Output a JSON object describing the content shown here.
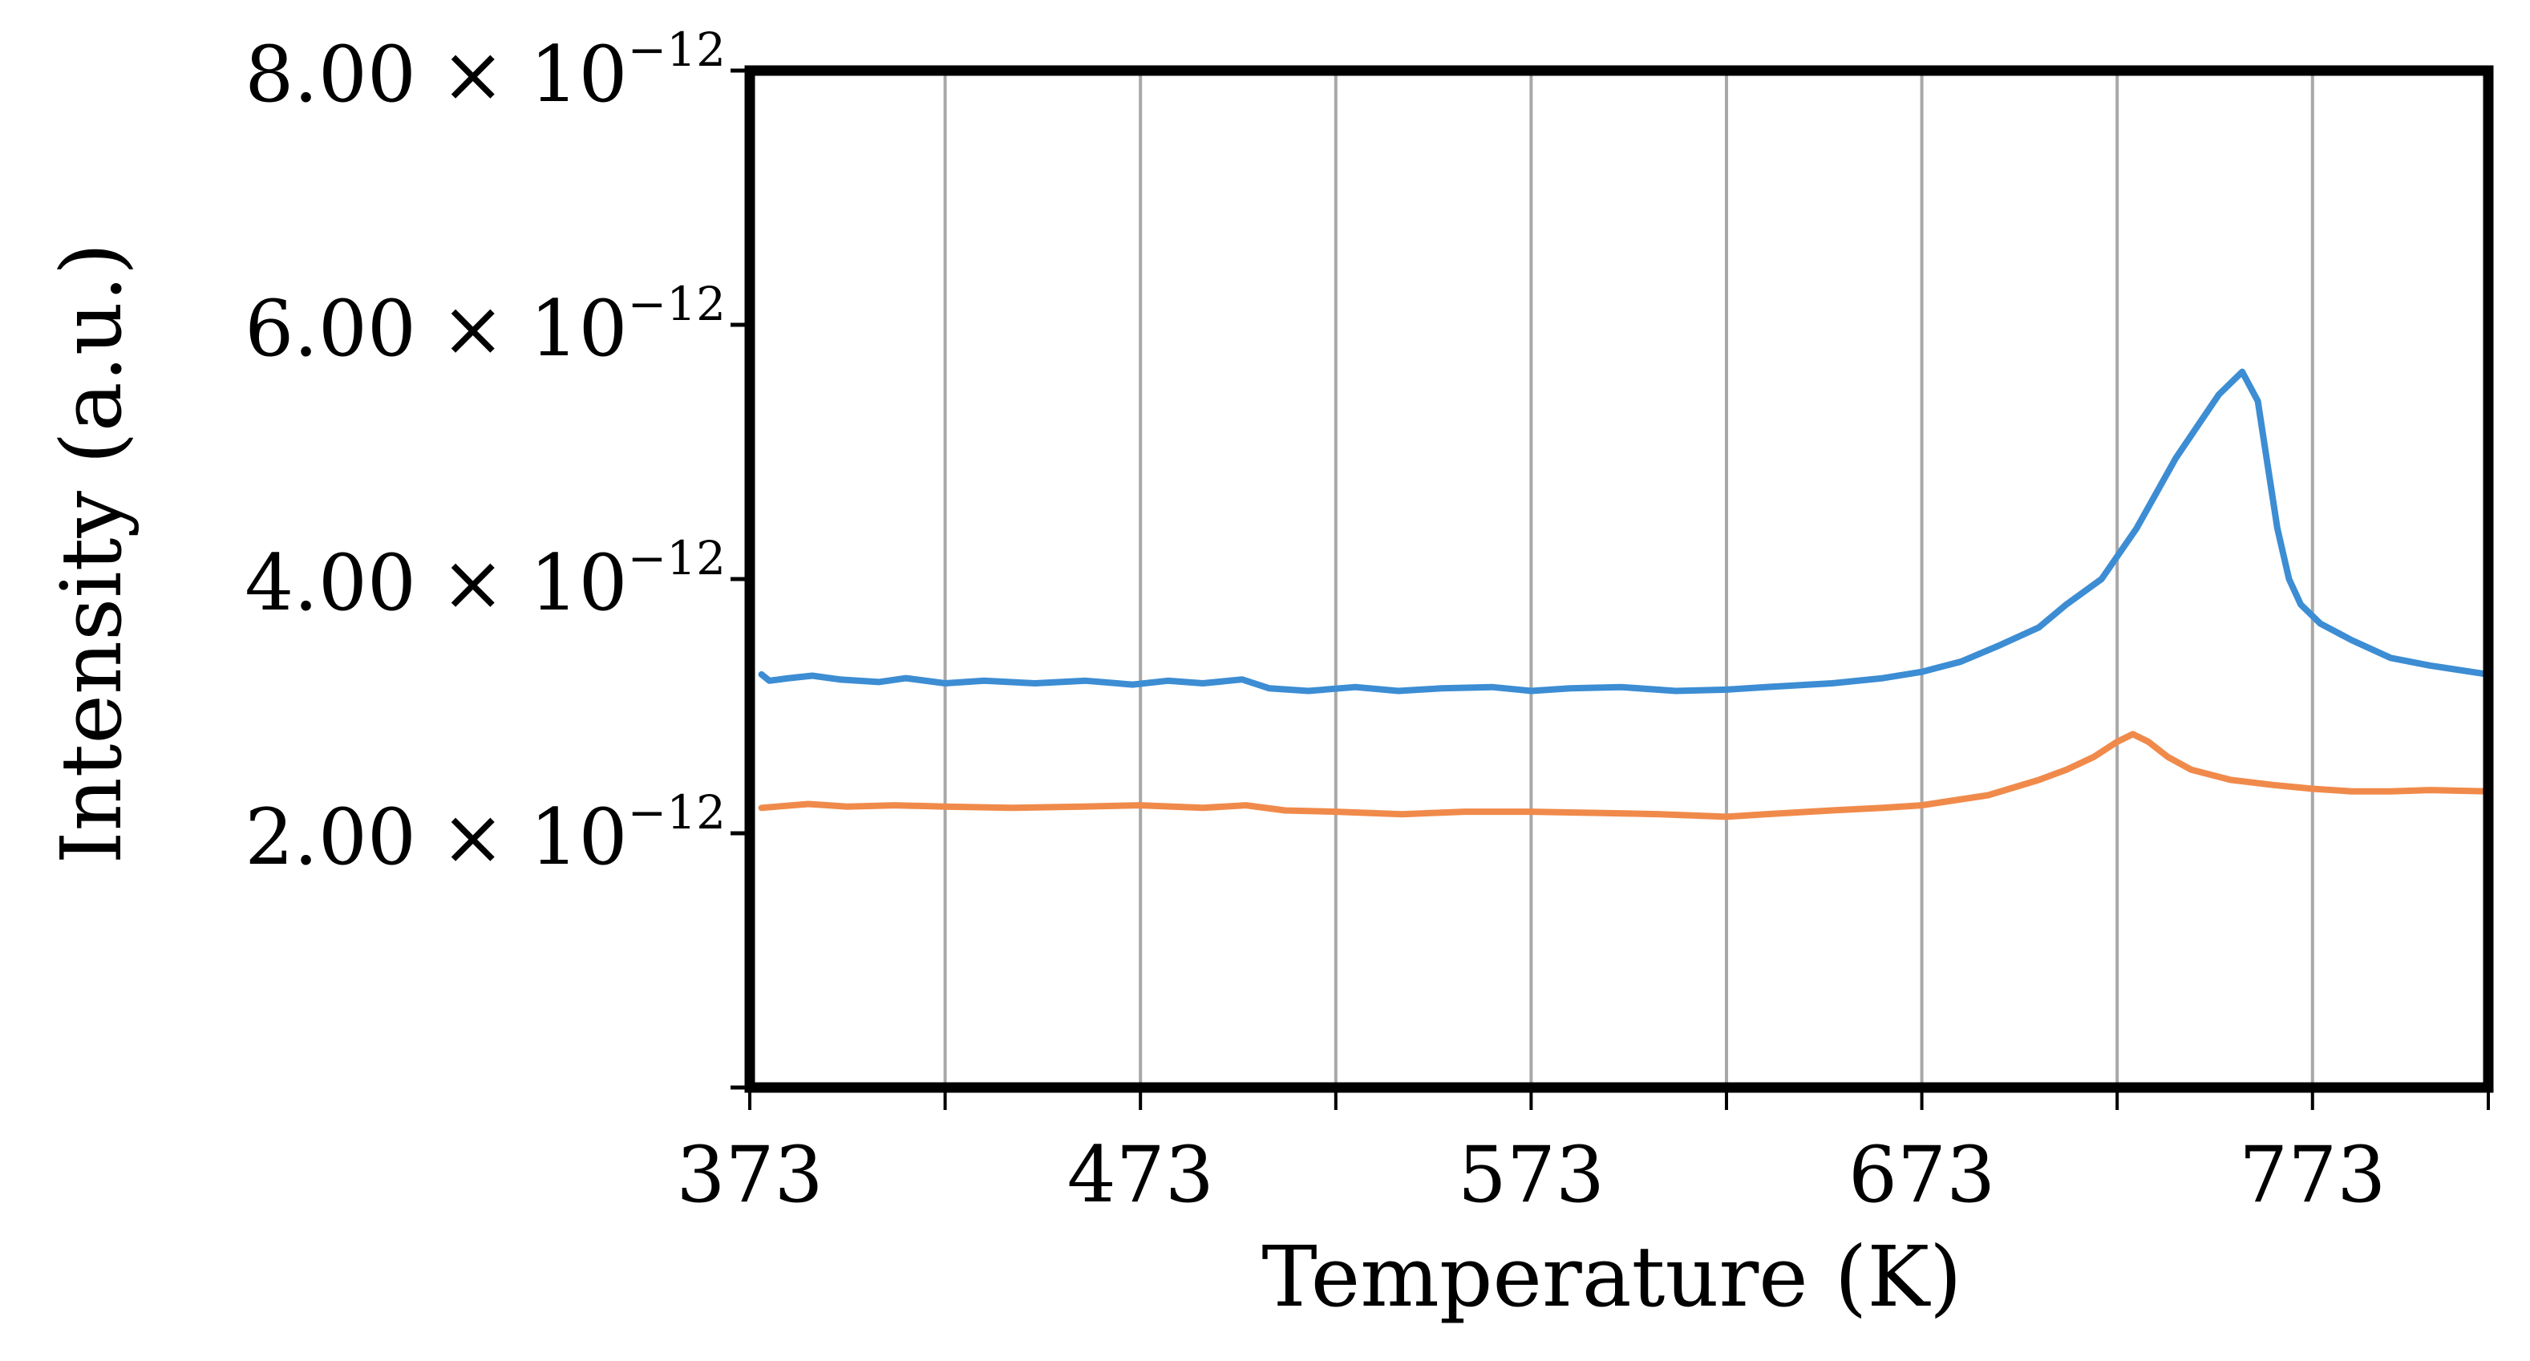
{
  "chart_data": {
    "type": "line",
    "xlabel": "Temperature (K)",
    "ylabel": "Intensity (a.u.)",
    "xlim": [
      373,
      818
    ],
    "ylim": [
      0,
      8e-12
    ],
    "x_ticks": [
      373,
      423,
      473,
      523,
      573,
      623,
      673,
      723,
      773,
      818
    ],
    "x_tick_labels": [
      {
        "value": 373,
        "label": "373"
      },
      {
        "value": 473,
        "label": "473"
      },
      {
        "value": 573,
        "label": "573"
      },
      {
        "value": 673,
        "label": "673"
      },
      {
        "value": 773,
        "label": "773"
      }
    ],
    "y_ticks": [
      0,
      2e-12,
      4e-12,
      6e-12,
      8e-12
    ],
    "y_tick_labels": [
      {
        "value": 2e-12,
        "mantissa": "2.00 × 10",
        "exponent": "−12"
      },
      {
        "value": 4e-12,
        "mantissa": "4.00 × 10",
        "exponent": "−12"
      },
      {
        "value": 6e-12,
        "mantissa": "6.00 × 10",
        "exponent": "−12"
      },
      {
        "value": 8e-12,
        "mantissa": "8.00 × 10",
        "exponent": "−12"
      }
    ],
    "grid": "vertical",
    "legend": "none",
    "series": [
      {
        "color": "#3c8dd3",
        "x": [
          376,
          378,
          383,
          389,
          396,
          406,
          413,
          423,
          433,
          446,
          459,
          471,
          480,
          489,
          499,
          506,
          516,
          528,
          539,
          550,
          563,
          573,
          583,
          596,
          610,
          623,
          633,
          650,
          663,
          673,
          683,
          693,
          703,
          710,
          719,
          728,
          738,
          749,
          755,
          759,
          761,
          764,
          767,
          770,
          775,
          783,
          793,
          803,
          818
        ],
        "y": [
          3.25e-12,
          3.2e-12,
          3.22e-12,
          3.24e-12,
          3.21e-12,
          3.19e-12,
          3.22e-12,
          3.18e-12,
          3.2e-12,
          3.18e-12,
          3.2e-12,
          3.17e-12,
          3.2e-12,
          3.18e-12,
          3.21e-12,
          3.14e-12,
          3.12e-12,
          3.15e-12,
          3.12e-12,
          3.14e-12,
          3.15e-12,
          3.12e-12,
          3.14e-12,
          3.15e-12,
          3.12e-12,
          3.13e-12,
          3.15e-12,
          3.18e-12,
          3.22e-12,
          3.27e-12,
          3.35e-12,
          3.48e-12,
          3.62e-12,
          3.8e-12,
          4e-12,
          4.4e-12,
          4.95e-12,
          5.45e-12,
          5.63e-12,
          5.4e-12,
          5e-12,
          4.4e-12,
          4e-12,
          3.8e-12,
          3.65e-12,
          3.52e-12,
          3.38e-12,
          3.32e-12,
          3.25e-12
        ]
      },
      {
        "color": "#f08a4b",
        "x": [
          376,
          380,
          388,
          398,
          410,
          423,
          440,
          458,
          473,
          489,
          500,
          510,
          523,
          540,
          556,
          573,
          590,
          606,
          623,
          633,
          650,
          663,
          673,
          690,
          703,
          710,
          717,
          723,
          727,
          731,
          736,
          742,
          752,
          763,
          773,
          783,
          793,
          803,
          818
        ],
        "y": [
          2.2e-12,
          2.21e-12,
          2.23e-12,
          2.21e-12,
          2.22e-12,
          2.21e-12,
          2.2e-12,
          2.21e-12,
          2.22e-12,
          2.2e-12,
          2.22e-12,
          2.18e-12,
          2.17e-12,
          2.15e-12,
          2.17e-12,
          2.17e-12,
          2.16e-12,
          2.15e-12,
          2.13e-12,
          2.15e-12,
          2.18e-12,
          2.2e-12,
          2.22e-12,
          2.3e-12,
          2.42e-12,
          2.5e-12,
          2.6e-12,
          2.72e-12,
          2.78e-12,
          2.72e-12,
          2.6e-12,
          2.5e-12,
          2.42e-12,
          2.38e-12,
          2.35e-12,
          2.33e-12,
          2.33e-12,
          2.34e-12,
          2.33e-12
        ]
      }
    ]
  }
}
